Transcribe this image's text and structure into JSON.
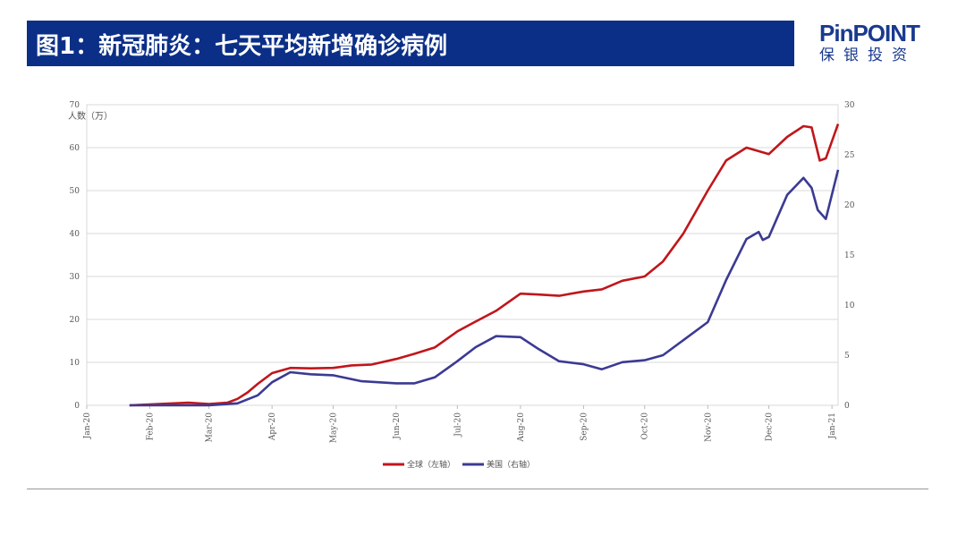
{
  "header": {
    "title": "图1：新冠肺炎：七天平均新增确诊病例",
    "logo_en": "PinPOINT",
    "logo_cn": "保银投资"
  },
  "colors": {
    "banner": "#0b2f87",
    "global": "#c0161b",
    "us": "#3b3a93"
  },
  "chart_data": {
    "type": "line",
    "title": "",
    "ylabel": "人数（万）",
    "ylim": [
      0,
      70
    ],
    "y2lim": [
      0,
      30
    ],
    "yticks": [
      0,
      10,
      20,
      30,
      40,
      50,
      60,
      70
    ],
    "y2ticks": [
      0,
      5,
      10,
      15,
      20,
      25,
      30
    ],
    "xlim": [
      "2020-01-01",
      "2021-01-04"
    ],
    "xticks": [
      {
        "date": "2020-01-01",
        "label": "Jan-20"
      },
      {
        "date": "2020-02-01",
        "label": "Feb-20"
      },
      {
        "date": "2020-03-01",
        "label": "Mar-20"
      },
      {
        "date": "2020-04-01",
        "label": "Apr-20"
      },
      {
        "date": "2020-05-01",
        "label": "May-20"
      },
      {
        "date": "2020-06-01",
        "label": "Jun-20"
      },
      {
        "date": "2020-07-01",
        "label": "Jul-20"
      },
      {
        "date": "2020-08-01",
        "label": "Aug-20"
      },
      {
        "date": "2020-09-01",
        "label": "Sep-20"
      },
      {
        "date": "2020-10-01",
        "label": "Oct-20"
      },
      {
        "date": "2020-11-01",
        "label": "Nov-20"
      },
      {
        "date": "2020-12-01",
        "label": "Dec-20"
      },
      {
        "date": "2021-01-01",
        "label": "Jan-21"
      }
    ],
    "grid": true,
    "legend": "bottom",
    "series": [
      {
        "name": "全球（左轴）",
        "axis": "left",
        "x": [
          "2020-01-22",
          "2020-02-10",
          "2020-02-20",
          "2020-03-01",
          "2020-03-10",
          "2020-03-15",
          "2020-03-20",
          "2020-03-25",
          "2020-04-01",
          "2020-04-10",
          "2020-04-20",
          "2020-05-01",
          "2020-05-10",
          "2020-05-20",
          "2020-06-01",
          "2020-06-10",
          "2020-06-20",
          "2020-07-01",
          "2020-07-10",
          "2020-07-20",
          "2020-08-01",
          "2020-08-10",
          "2020-08-20",
          "2020-09-01",
          "2020-09-10",
          "2020-09-20",
          "2020-10-01",
          "2020-10-10",
          "2020-10-20",
          "2020-11-01",
          "2020-11-10",
          "2020-11-20",
          "2020-12-01",
          "2020-12-10",
          "2020-12-18",
          "2020-12-22",
          "2020-12-26",
          "2020-12-29",
          "2021-01-04"
        ],
        "values": [
          0,
          0.4,
          0.6,
          0.3,
          0.6,
          1.5,
          3,
          5,
          7.5,
          8.7,
          8.6,
          8.7,
          9.3,
          9.5,
          10.8,
          12,
          13.5,
          17.2,
          19.5,
          22,
          26,
          25.8,
          25.5,
          26.5,
          27,
          29,
          30,
          33.5,
          40,
          50,
          57,
          60,
          58.5,
          62.5,
          65,
          64.7,
          57,
          57.5,
          65.5
        ]
      },
      {
        "name": "美国（右轴）",
        "axis": "right",
        "x": [
          "2020-01-22",
          "2020-03-01",
          "2020-03-15",
          "2020-03-25",
          "2020-04-01",
          "2020-04-10",
          "2020-04-20",
          "2020-05-01",
          "2020-05-15",
          "2020-06-01",
          "2020-06-10",
          "2020-06-20",
          "2020-07-01",
          "2020-07-10",
          "2020-07-20",
          "2020-08-01",
          "2020-08-10",
          "2020-08-20",
          "2020-09-01",
          "2020-09-10",
          "2020-09-20",
          "2020-10-01",
          "2020-10-10",
          "2020-10-20",
          "2020-11-01",
          "2020-11-10",
          "2020-11-20",
          "2020-11-26",
          "2020-11-28",
          "2020-12-01",
          "2020-12-10",
          "2020-12-18",
          "2020-12-22",
          "2020-12-25",
          "2020-12-29",
          "2021-01-04"
        ],
        "values": [
          0,
          0,
          0.2,
          1,
          2.3,
          3.3,
          3.1,
          3.0,
          2.4,
          2.2,
          2.2,
          2.8,
          4.4,
          5.8,
          6.9,
          6.8,
          5.6,
          4.4,
          4.1,
          3.6,
          4.3,
          4.5,
          5.0,
          6.5,
          8.3,
          12.5,
          16.6,
          17.3,
          16.5,
          16.8,
          21,
          22.7,
          21.7,
          19.5,
          18.6,
          23.5
        ]
      }
    ]
  }
}
